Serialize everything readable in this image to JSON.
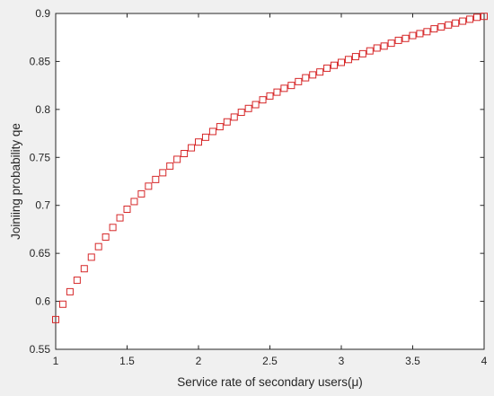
{
  "chart_data": {
    "type": "scatter",
    "xlabel": "Service rate of secondary users(μ)",
    "ylabel": "Joiniing probability qe",
    "xlim": [
      1,
      4
    ],
    "ylim": [
      0.55,
      0.9
    ],
    "xticks": [
      "1",
      "1.5",
      "2",
      "2.5",
      "3",
      "3.5",
      "4"
    ],
    "yticks": [
      "0.55",
      "0.6",
      "0.65",
      "0.7",
      "0.75",
      "0.8",
      "0.85",
      "0.9"
    ],
    "grid": false,
    "marker": "square",
    "marker_color": "#d62728",
    "series": [
      {
        "x": [
          1.0,
          1.05,
          1.1,
          1.15,
          1.2,
          1.25,
          1.3,
          1.35,
          1.4,
          1.45,
          1.5,
          1.55,
          1.6,
          1.65,
          1.7,
          1.75,
          1.8,
          1.85,
          1.9,
          1.95,
          2.0,
          2.05,
          2.1,
          2.15,
          2.2,
          2.25,
          2.3,
          2.35,
          2.4,
          2.45,
          2.5,
          2.55,
          2.6,
          2.65,
          2.7,
          2.75,
          2.8,
          2.85,
          2.9,
          2.95,
          3.0,
          3.05,
          3.1,
          3.15,
          3.2,
          3.25,
          3.3,
          3.35,
          3.4,
          3.45,
          3.5,
          3.55,
          3.6,
          3.65,
          3.7,
          3.75,
          3.8,
          3.85,
          3.9,
          3.95,
          4.0
        ],
        "y": [
          0.581,
          0.597,
          0.61,
          0.622,
          0.634,
          0.646,
          0.657,
          0.667,
          0.677,
          0.687,
          0.696,
          0.704,
          0.712,
          0.72,
          0.727,
          0.734,
          0.741,
          0.748,
          0.754,
          0.76,
          0.766,
          0.771,
          0.777,
          0.782,
          0.787,
          0.792,
          0.797,
          0.801,
          0.805,
          0.81,
          0.814,
          0.818,
          0.822,
          0.825,
          0.829,
          0.833,
          0.836,
          0.839,
          0.843,
          0.846,
          0.849,
          0.852,
          0.855,
          0.858,
          0.861,
          0.864,
          0.866,
          0.869,
          0.872,
          0.874,
          0.877,
          0.879,
          0.881,
          0.884,
          0.886,
          0.888,
          0.89,
          0.892,
          0.894,
          0.896,
          0.897
        ]
      }
    ]
  }
}
